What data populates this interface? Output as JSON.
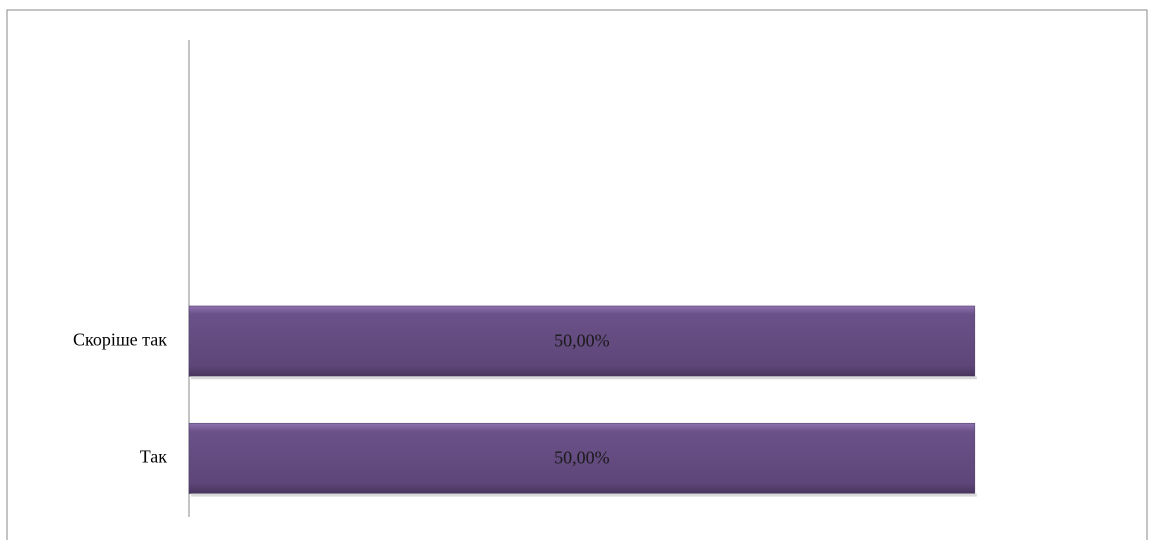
{
  "chart_data": {
    "type": "hbar",
    "categories": [
      null,
      null,
      "Скоріше так",
      "Так"
    ],
    "values": [
      null,
      null,
      50,
      50
    ],
    "value_labels": [
      null,
      null,
      "50,00%",
      "50,00%"
    ],
    "color": "#604a7b",
    "xlim": [
      0,
      60
    ]
  }
}
